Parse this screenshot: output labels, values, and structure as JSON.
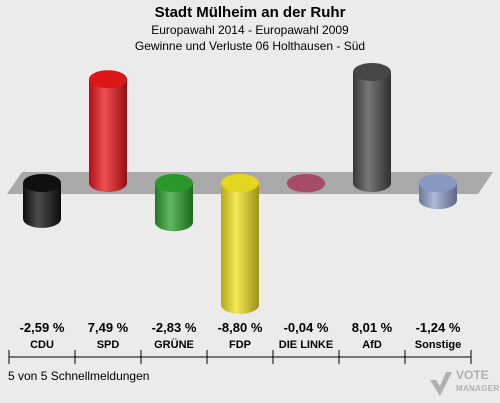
{
  "header": {
    "title": "Stadt Mülheim an der Ruhr",
    "subtitle": "Europawahl 2014 - Europawahl 2009",
    "subtitle2": "Gewinne und Verluste 06 Holthausen - Süd"
  },
  "footer": {
    "text": "5 von 5 Schnellmeldungen"
  },
  "logo": {
    "line1": "VOTE",
    "line2": "MANAGER"
  },
  "value_labels": [
    "-2,59 %",
    "7,49 %",
    "-2,83 %",
    "-8,80 %",
    "-0,04 %",
    "8,01 %",
    "-1,24 %"
  ],
  "chart_data": {
    "type": "bar",
    "categories": [
      "CDU",
      "SPD",
      "GRÜNE",
      "FDP",
      "DIE LINKE",
      "AfD",
      "Sonstige"
    ],
    "values": [
      -2.59,
      7.49,
      -2.83,
      -8.8,
      -0.04,
      8.01,
      -1.24
    ],
    "colors": [
      "#111111",
      "#e8161a",
      "#2ca02c",
      "#f0e020",
      "#b0506a",
      "#4a4a4a",
      "#8fa0cc"
    ],
    "title": "Stadt Mülheim an der Ruhr",
    "xlabel": "",
    "ylabel": "",
    "ylim": [
      -9,
      9
    ]
  }
}
